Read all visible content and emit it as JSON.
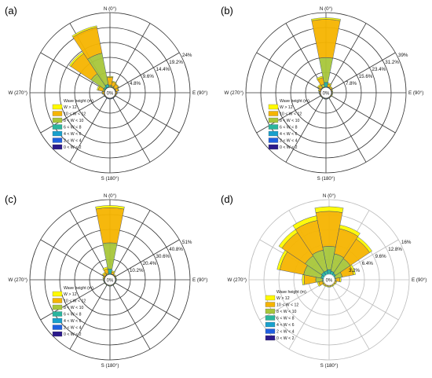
{
  "colors": {
    "grid": "#333333",
    "grid_light": "#bbbbbb",
    "legend_bins": [
      "#fffa00",
      "#f5b400",
      "#a8c63a",
      "#2ab59e",
      "#1aa0cc",
      "#2060e0",
      "#2b1a8c"
    ],
    "bar_edge": "#0f2a80"
  },
  "legend_title": "Wave height (m)",
  "legend_labels": [
    "W  > 12",
    "10 < W  < 12",
    "8 < W  < 10",
    "6 < W  < 8",
    "4 < W  < 6",
    "2 < W  < 4",
    "0 < W  < 2"
  ],
  "direction_labels": {
    "n": "N (0°)",
    "e": "E (90°)",
    "s": "S (180°)",
    "w": "W (270°)"
  },
  "zero_label": "0%",
  "chart_data": [
    {
      "type": "wind-rose",
      "panel_label": "(a)",
      "directions_deg": [
        0,
        22.5,
        45,
        67.5,
        90,
        112.5,
        135,
        157.5,
        180,
        202.5,
        225,
        247.5,
        270,
        292.5,
        315,
        337.5
      ],
      "rmax": 24,
      "ring_values": [
        4.8,
        9.6,
        14.4,
        19.2,
        24
      ],
      "ring_labels": [
        "4.8%",
        "9.6%",
        "14.4%",
        "19.2%",
        "24%"
      ],
      "series": [
        {
          "values": [
            0.3,
            0.3,
            0.2,
            0.2,
            0.1,
            0.1,
            0.1,
            0.1,
            0.1,
            0.1,
            0.1,
            0.1,
            0.2,
            0.4,
            0.6,
            0.5
          ]
        },
        {
          "values": [
            2.5,
            1.3,
            1.2,
            0.8,
            0.5,
            0.3,
            0.2,
            0.2,
            0.2,
            0.2,
            0.2,
            0.3,
            0.5,
            1.5,
            7.8,
            8.5
          ]
        },
        {
          "values": [
            0.6,
            0.4,
            0.3,
            0.2,
            0.0,
            0.0,
            0.0,
            0.0,
            0.0,
            0.0,
            0.0,
            0.0,
            0.1,
            0.5,
            5.0,
            10.2
          ]
        },
        {
          "values": [
            0.1,
            0.1,
            0.0,
            0.0,
            0.0,
            0.0,
            0.0,
            0.0,
            0.0,
            0.0,
            0.0,
            0.0,
            0.0,
            0.1,
            0.6,
            1.0
          ]
        },
        {
          "values": [
            0,
            0,
            0,
            0,
            0,
            0,
            0,
            0,
            0,
            0,
            0,
            0,
            0,
            0,
            0,
            0
          ]
        },
        {
          "values": [
            0,
            0,
            0,
            0,
            0,
            0,
            0,
            0,
            0,
            0,
            0,
            0,
            0,
            0,
            0,
            0
          ]
        },
        {
          "values": [
            0,
            0,
            0,
            0,
            0,
            0,
            0,
            0,
            0,
            0,
            0,
            0,
            0,
            0,
            0,
            0
          ]
        }
      ]
    },
    {
      "type": "wind-rose",
      "panel_label": "(b)",
      "directions_deg": [
        0,
        22.5,
        45,
        67.5,
        90,
        112.5,
        135,
        157.5,
        180,
        202.5,
        225,
        247.5,
        270,
        292.5,
        315,
        337.5
      ],
      "rmax": 39,
      "ring_values": [
        7.8,
        15.6,
        23.4,
        31.2,
        39
      ],
      "ring_labels": [
        "7.8%",
        "15.6%",
        "23.4%",
        "31.2%",
        "39%"
      ],
      "series": [
        {
          "values": [
            0.8,
            0.6,
            0.4,
            0.3,
            0.3,
            0.3,
            0.2,
            0.2,
            0.3,
            0.2,
            0.2,
            0.2,
            0.3,
            0.4,
            0.6,
            0.8
          ]
        },
        {
          "values": [
            20.0,
            1.5,
            0.8,
            0.5,
            0.4,
            0.4,
            0.3,
            0.3,
            0.3,
            0.3,
            0.3,
            0.4,
            0.5,
            0.8,
            1.5,
            3.5
          ]
        },
        {
          "values": [
            13.0,
            0.3,
            0.1,
            0.0,
            0.0,
            0.0,
            0.0,
            0.0,
            0.0,
            0.0,
            0.0,
            0.0,
            0.0,
            0.1,
            0.4,
            1.5
          ]
        },
        {
          "values": [
            2.5,
            0.0,
            0.0,
            0.0,
            0.0,
            0.0,
            0.0,
            0.0,
            0.0,
            0.0,
            0.0,
            0.0,
            0.0,
            0.0,
            0.0,
            0.2
          ]
        },
        {
          "values": [
            0,
            0,
            0,
            0,
            0,
            0,
            0,
            0,
            0,
            0,
            0,
            0,
            0,
            0,
            0,
            0
          ]
        },
        {
          "values": [
            0,
            0,
            0,
            0,
            0,
            0,
            0,
            0,
            0,
            0,
            0,
            0,
            0,
            0,
            0,
            0
          ]
        },
        {
          "values": [
            0,
            0,
            0,
            0,
            0,
            0,
            0,
            0,
            0,
            0,
            0,
            0,
            0,
            0,
            0,
            0
          ]
        }
      ]
    },
    {
      "type": "wind-rose",
      "panel_label": "(c)",
      "directions_deg": [
        0,
        22.5,
        45,
        67.5,
        90,
        112.5,
        135,
        157.5,
        180,
        202.5,
        225,
        247.5,
        270,
        292.5,
        315,
        337.5
      ],
      "rmax": 51,
      "ring_values": [
        10.2,
        20.4,
        30.6,
        40.8,
        51
      ],
      "ring_labels": [
        "10.2%",
        "20.4%",
        "30.6%",
        "40.8%",
        "51%"
      ],
      "series": [
        {
          "values": [
            1.5,
            0.8,
            0.5,
            0.4,
            0.4,
            0.3,
            0.3,
            0.3,
            0.4,
            0.3,
            0.3,
            0.3,
            0.4,
            0.5,
            0.8,
            1.2
          ]
        },
        {
          "values": [
            24.0,
            1.5,
            0.6,
            0.4,
            0.4,
            0.3,
            0.3,
            0.3,
            0.3,
            0.3,
            0.3,
            0.4,
            0.5,
            0.8,
            1.5,
            3.0
          ]
        },
        {
          "values": [
            18.0,
            0.3,
            0.0,
            0.0,
            0.0,
            0.0,
            0.0,
            0.0,
            0.0,
            0.0,
            0.0,
            0.0,
            0.0,
            0.0,
            0.3,
            1.0
          ]
        },
        {
          "values": [
            3.5,
            0.0,
            0.0,
            0.0,
            0.0,
            0.0,
            0.0,
            0.0,
            0.0,
            0.0,
            0.0,
            0.0,
            0.0,
            0.0,
            0.0,
            0.0
          ]
        },
        {
          "values": [
            0,
            0,
            0,
            0,
            0,
            0,
            0,
            0,
            0,
            0,
            0,
            0,
            0,
            0,
            0,
            0
          ]
        },
        {
          "values": [
            0,
            0,
            0,
            0,
            0,
            0,
            0,
            0,
            0,
            0,
            0,
            0,
            0,
            0,
            0,
            0
          ]
        },
        {
          "values": [
            0,
            0,
            0,
            0,
            0,
            0,
            0,
            0,
            0,
            0,
            0,
            0,
            0,
            0,
            0,
            0
          ]
        }
      ]
    },
    {
      "type": "wind-rose",
      "panel_label": "(d)",
      "directions_deg": [
        0,
        22.5,
        45,
        67.5,
        90,
        112.5,
        135,
        157.5,
        180,
        202.5,
        225,
        247.5,
        270,
        292.5,
        315,
        337.5
      ],
      "rmax": 16,
      "ring_values": [
        3.2,
        6.4,
        9.6,
        12.8,
        16
      ],
      "ring_labels": [
        "3.2%",
        "6.4%",
        "9.6%",
        "12.8%",
        "16%"
      ],
      "series": [
        {
          "values": [
            1.0,
            0.8,
            0.6,
            0.4,
            0.3,
            0.2,
            0.2,
            0.2,
            0.2,
            0.2,
            0.2,
            0.3,
            0.4,
            0.6,
            0.8,
            1.0
          ]
        },
        {
          "values": [
            7.5,
            5.5,
            5.0,
            2.5,
            0.8,
            0.3,
            0.2,
            0.2,
            0.2,
            0.2,
            0.3,
            0.8,
            2.5,
            5.2,
            6.0,
            6.5
          ]
        },
        {
          "values": [
            5.0,
            3.8,
            3.8,
            1.5,
            0.3,
            0.0,
            0.0,
            0.0,
            0.0,
            0.0,
            0.0,
            0.3,
            1.5,
            3.8,
            4.2,
            4.5
          ]
        },
        {
          "values": [
            1.0,
            0.7,
            0.5,
            0.2,
            0.0,
            0.0,
            0.0,
            0.0,
            0.0,
            0.0,
            0.0,
            0.0,
            0.2,
            0.6,
            0.8,
            0.8
          ]
        },
        {
          "values": [
            0,
            0,
            0,
            0,
            0,
            0,
            0,
            0,
            0,
            0,
            0,
            0,
            0,
            0,
            0,
            0
          ]
        },
        {
          "values": [
            0,
            0,
            0,
            0,
            0,
            0,
            0,
            0,
            0,
            0,
            0,
            0,
            0,
            0,
            0,
            0
          ]
        },
        {
          "values": [
            0,
            0,
            0,
            0,
            0,
            0,
            0,
            0,
            0,
            0,
            0,
            0,
            0,
            0,
            0,
            0
          ]
        }
      ]
    }
  ]
}
